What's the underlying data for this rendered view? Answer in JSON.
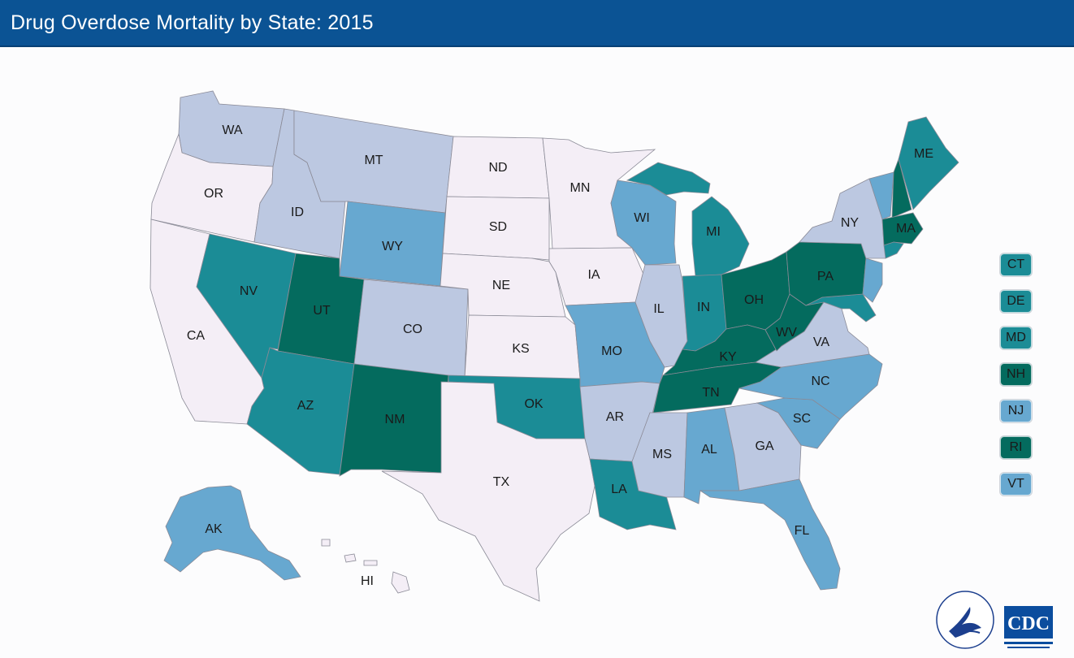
{
  "header": {
    "title": "Drug Overdose Mortality by State: 2015"
  },
  "colors": {
    "palest": "#f4eef6",
    "light": "#bcc8e1",
    "mid": "#67a8d0",
    "teal": "#1b8c96",
    "dark": "#046b5e",
    "title_bg": "#0b5394"
  },
  "map": {
    "states": [
      {
        "id": "WA",
        "label": "WA",
        "class": "light"
      },
      {
        "id": "OR",
        "label": "OR",
        "class": "palest"
      },
      {
        "id": "CA",
        "label": "CA",
        "class": "palest"
      },
      {
        "id": "ID",
        "label": "ID",
        "class": "light"
      },
      {
        "id": "NV",
        "label": "NV",
        "class": "teal"
      },
      {
        "id": "MT",
        "label": "MT",
        "class": "light"
      },
      {
        "id": "WY",
        "label": "WY",
        "class": "mid"
      },
      {
        "id": "UT",
        "label": "UT",
        "class": "dark"
      },
      {
        "id": "AZ",
        "label": "AZ",
        "class": "teal"
      },
      {
        "id": "CO",
        "label": "CO",
        "class": "light"
      },
      {
        "id": "NM",
        "label": "NM",
        "class": "dark"
      },
      {
        "id": "ND",
        "label": "ND",
        "class": "palest"
      },
      {
        "id": "SD",
        "label": "SD",
        "class": "palest"
      },
      {
        "id": "NE",
        "label": "NE",
        "class": "palest"
      },
      {
        "id": "KS",
        "label": "KS",
        "class": "palest"
      },
      {
        "id": "OK",
        "label": "OK",
        "class": "teal"
      },
      {
        "id": "TX",
        "label": "TX",
        "class": "palest"
      },
      {
        "id": "MN",
        "label": "MN",
        "class": "palest"
      },
      {
        "id": "IA",
        "label": "IA",
        "class": "palest"
      },
      {
        "id": "MO",
        "label": "MO",
        "class": "mid"
      },
      {
        "id": "AR",
        "label": "AR",
        "class": "light"
      },
      {
        "id": "LA",
        "label": "LA",
        "class": "teal"
      },
      {
        "id": "WI",
        "label": "WI",
        "class": "mid"
      },
      {
        "id": "IL",
        "label": "IL",
        "class": "light"
      },
      {
        "id": "MI",
        "label": "MI",
        "class": "teal"
      },
      {
        "id": "IN",
        "label": "IN",
        "class": "teal"
      },
      {
        "id": "OH",
        "label": "OH",
        "class": "dark"
      },
      {
        "id": "KY",
        "label": "KY",
        "class": "dark"
      },
      {
        "id": "TN",
        "label": "TN",
        "class": "dark"
      },
      {
        "id": "MS",
        "label": "MS",
        "class": "light"
      },
      {
        "id": "AL",
        "label": "AL",
        "class": "mid"
      },
      {
        "id": "GA",
        "label": "GA",
        "class": "light"
      },
      {
        "id": "FL",
        "label": "FL",
        "class": "mid"
      },
      {
        "id": "SC",
        "label": "SC",
        "class": "mid"
      },
      {
        "id": "NC",
        "label": "NC",
        "class": "mid"
      },
      {
        "id": "VA",
        "label": "VA",
        "class": "light"
      },
      {
        "id": "WV",
        "label": "WV",
        "class": "dark"
      },
      {
        "id": "PA",
        "label": "PA",
        "class": "dark"
      },
      {
        "id": "NY",
        "label": "NY",
        "class": "light"
      },
      {
        "id": "ME",
        "label": "ME",
        "class": "teal"
      },
      {
        "id": "MA",
        "label": "MA",
        "class": "dark"
      },
      {
        "id": "AK",
        "label": "AK",
        "class": "mid"
      },
      {
        "id": "HI",
        "label": "HI",
        "class": "palest"
      }
    ]
  },
  "legend": [
    {
      "label": "CT",
      "class": "teal"
    },
    {
      "label": "DE",
      "class": "teal"
    },
    {
      "label": "MD",
      "class": "teal"
    },
    {
      "label": "NH",
      "class": "dark"
    },
    {
      "label": "NJ",
      "class": "mid"
    },
    {
      "label": "RI",
      "class": "dark"
    },
    {
      "label": "VT",
      "class": "mid"
    }
  ],
  "logos": {
    "cdc_text": "CDC"
  }
}
